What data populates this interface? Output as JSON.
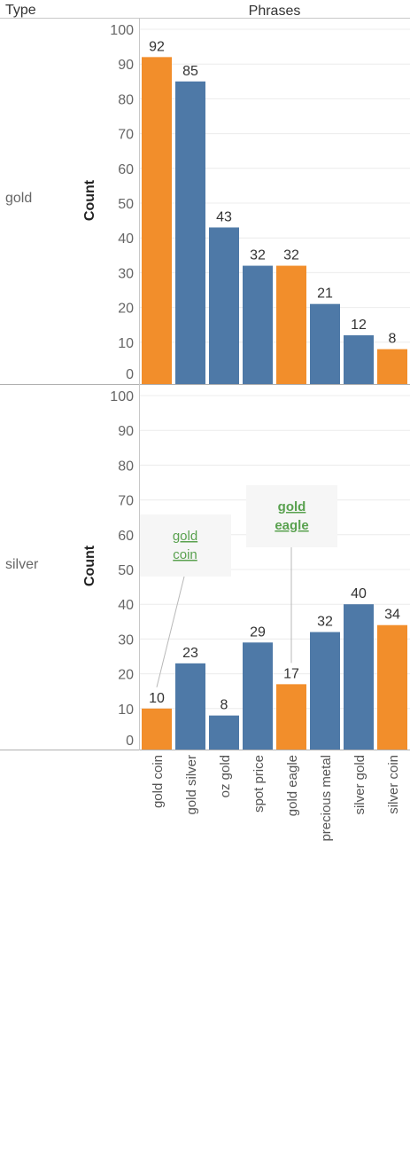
{
  "headers": {
    "row_dim": "Type",
    "col_dim": "Phrases"
  },
  "y_axis_title": "Count",
  "colors": {
    "highlight": "#f28e2b",
    "default": "#4e79a7"
  },
  "chart_data": [
    {
      "type": "bar",
      "panel": "gold",
      "categories": [
        "gold coin",
        "gold silver",
        "oz gold",
        "spot price",
        "gold eagle",
        "precious metal",
        "silver gold",
        "silver coin"
      ],
      "values": [
        92,
        85,
        43,
        32,
        32,
        21,
        12,
        8
      ],
      "highlighted": [
        true,
        false,
        false,
        false,
        true,
        false,
        false,
        true
      ],
      "ylabel": "Count",
      "ylim": [
        0,
        100
      ],
      "yticks": [
        0,
        10,
        20,
        30,
        40,
        50,
        60,
        70,
        80,
        90,
        100
      ],
      "grid": true
    },
    {
      "type": "bar",
      "panel": "silver",
      "categories": [
        "gold coin",
        "gold silver",
        "oz gold",
        "spot price",
        "gold eagle",
        "precious metal",
        "silver gold",
        "silver coin"
      ],
      "values": [
        10,
        23,
        8,
        29,
        17,
        32,
        40,
        34
      ],
      "highlighted": [
        true,
        false,
        false,
        false,
        true,
        false,
        false,
        true
      ],
      "ylabel": "Count",
      "ylim": [
        0,
        100
      ],
      "yticks": [
        0,
        10,
        20,
        30,
        40,
        50,
        60,
        70,
        80,
        90,
        100
      ],
      "grid": true,
      "annotations": [
        {
          "lines": [
            "gold",
            "coin"
          ],
          "category": "gold coin",
          "bold": false
        },
        {
          "lines": [
            "gold",
            "eagle"
          ],
          "category": "gold eagle",
          "bold": true
        }
      ]
    }
  ]
}
